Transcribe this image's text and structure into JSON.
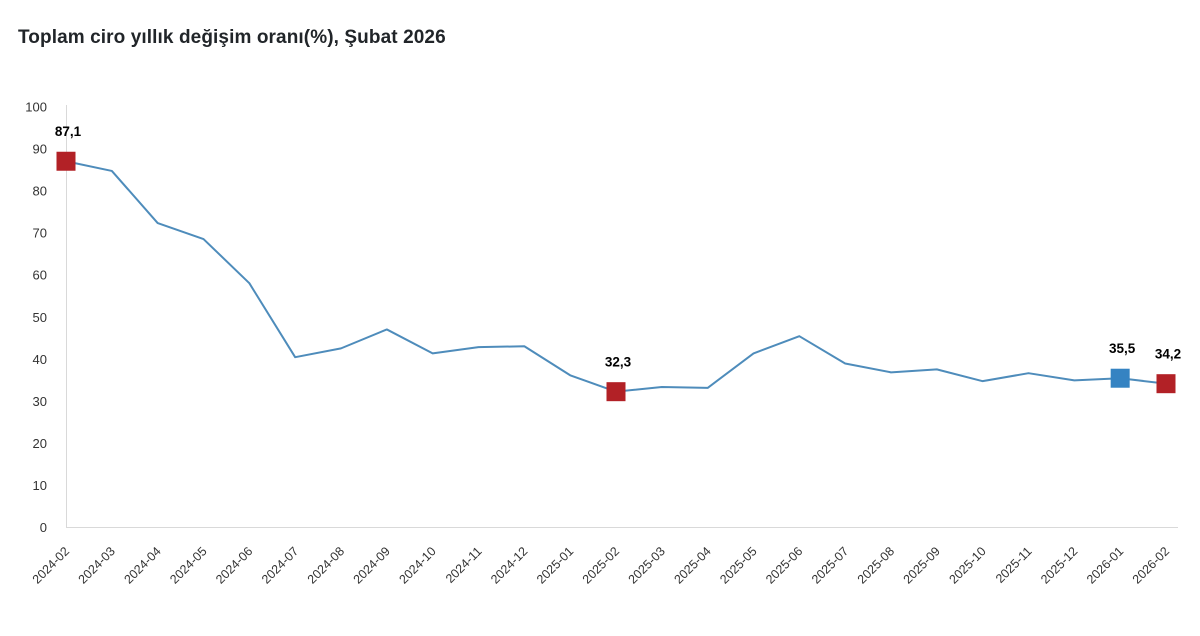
{
  "chart_data": {
    "type": "line",
    "title": "Toplam ciro yıllık değişim oranı(%), Şubat 2026",
    "categories": [
      "2024-02",
      "2024-03",
      "2024-04",
      "2024-05",
      "2024-06",
      "2024-07",
      "2024-08",
      "2024-09",
      "2024-10",
      "2024-11",
      "2024-12",
      "2025-01",
      "2025-02",
      "2025-03",
      "2025-04",
      "2025-05",
      "2025-06",
      "2025-07",
      "2025-08",
      "2025-09",
      "2025-10",
      "2025-11",
      "2025-12",
      "2026-01",
      "2026-02"
    ],
    "values": [
      87.1,
      84.8,
      72.4,
      68.6,
      58.1,
      40.5,
      42.6,
      47.1,
      41.4,
      42.9,
      43.1,
      36.2,
      32.3,
      33.4,
      33.2,
      41.4,
      45.5,
      39.0,
      36.9,
      37.6,
      34.8,
      36.7,
      35.0,
      35.5,
      34.2
    ],
    "ylim": [
      0,
      100
    ],
    "ytick_step": 10,
    "grid": false,
    "legend_position": "none",
    "xlabel": "",
    "ylabel": "",
    "annotations": [
      {
        "index": 0,
        "category": "2024-02",
        "value": 87.1,
        "label": "87,1",
        "marker": "square",
        "color_key": "marker_red"
      },
      {
        "index": 12,
        "category": "2025-02",
        "value": 32.3,
        "label": "32,3",
        "marker": "square",
        "color_key": "marker_red"
      },
      {
        "index": 23,
        "category": "2026-01",
        "value": 35.5,
        "label": "35,5",
        "marker": "square",
        "color_key": "marker_blue"
      },
      {
        "index": 24,
        "category": "2026-02",
        "value": 34.2,
        "label": "34,2",
        "marker": "square",
        "color_key": "marker_red"
      }
    ],
    "colors": {
      "line": "#4e8cbb",
      "marker_red": "#b22126",
      "marker_blue": "#3583c2",
      "axis_line": "#d9d9d9",
      "tick_text": "#333333",
      "title_text": "#212529",
      "annotation_text": "#000000"
    }
  }
}
